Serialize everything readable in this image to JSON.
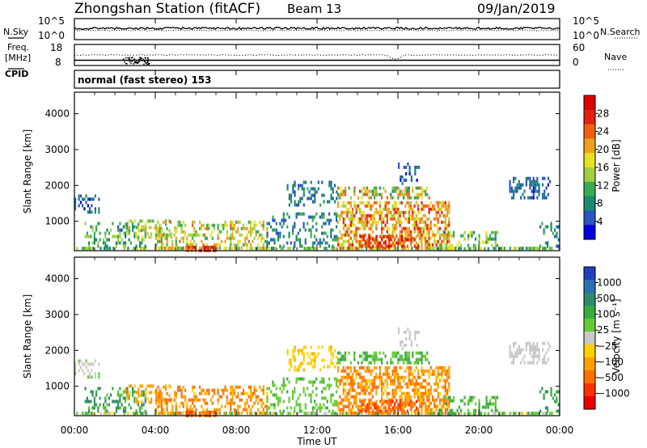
{
  "header": {
    "station": "Zhongshan Station (fitACF)",
    "beam": "Beam 13",
    "date": "09/Jan/2019"
  },
  "labels": {
    "nsky": "N.Sky",
    "nsearch": "N.Search",
    "freq_top": "Freq.",
    "freq_unit": "[MHz]",
    "nave": "Nave",
    "cpid": "CPID",
    "cpid_text": "normal (fast stereo) 153"
  },
  "ticks": {
    "noise_left": [
      "10^5",
      "10^0"
    ],
    "noise_right": [
      "10^5",
      "10^0"
    ],
    "freq_left": [
      "18",
      "8"
    ],
    "nave_right": [
      "60",
      "0"
    ]
  },
  "chart_data": [
    {
      "type": "line",
      "panel": "noise",
      "series": [
        {
          "name": "N.Sky",
          "values": []
        },
        {
          "name": "N.Search",
          "values": []
        }
      ],
      "ylabel_left": "N.Sky",
      "ylabel_right": "N.Search"
    },
    {
      "type": "line",
      "panel": "frequency",
      "series": [
        {
          "name": "Freq.",
          "values": []
        },
        {
          "name": "Nave",
          "values": []
        }
      ],
      "ylim_left": [
        8,
        18
      ],
      "ylim_right": [
        0,
        60
      ]
    },
    {
      "type": "heatmap",
      "panel": "power",
      "ylabel": "Slant Range [km]",
      "yticks": [
        "1000",
        "2000",
        "3000",
        "4000"
      ],
      "ylim": [
        180,
        4600
      ],
      "xticks": [
        "00:00",
        "04:00",
        "08:00",
        "12:00",
        "16:00",
        "20:00",
        "00:00"
      ],
      "colorbar": {
        "label": "Power [dB]",
        "ticks": [
          "4",
          "8",
          "12",
          "16",
          "20",
          "24",
          "28"
        ],
        "colors": [
          "#0000dd",
          "#2a55c0",
          "#1a8a70",
          "#3aaa50",
          "#a0d040",
          "#e8e020",
          "#f0a020",
          "#f06010",
          "#e02010",
          "#dd0000"
        ]
      }
    },
    {
      "type": "heatmap",
      "panel": "velocity",
      "ylabel": "Slant Range [km]",
      "yticks": [
        "1000",
        "2000",
        "3000",
        "4000"
      ],
      "ylim": [
        180,
        4600
      ],
      "xticks": [
        "00:00",
        "04:00",
        "08:00",
        "12:00",
        "16:00",
        "20:00",
        "00:00"
      ],
      "colorbar": {
        "label": "Velocity [m s⁻¹]",
        "ticks": [
          "1000",
          "500",
          "100",
          "25",
          "−25",
          "−100",
          "−500",
          "−1000"
        ],
        "colors": [
          "#2040c0",
          "#2a70b0",
          "#2e8a6a",
          "#3aaa40",
          "#66cc33",
          "#c8c8c8",
          "#ffd000",
          "#ffa000",
          "#ff7000",
          "#ff3000",
          "#ee0000"
        ]
      }
    }
  ],
  "xlabel": "Time UT"
}
